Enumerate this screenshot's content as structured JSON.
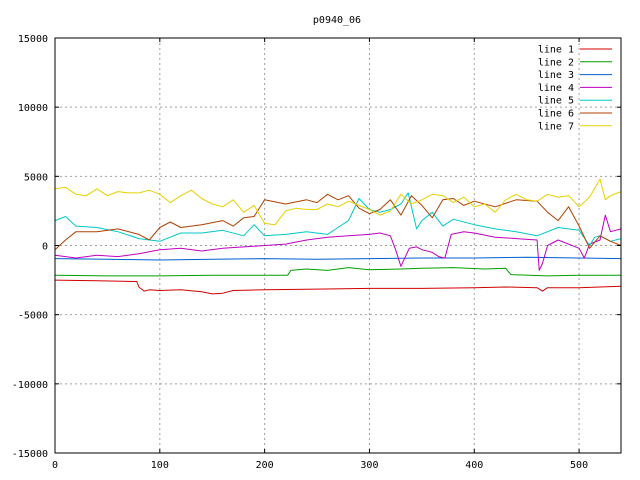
{
  "chart_data": {
    "type": "line",
    "title": "p0940_06",
    "xlabel": "",
    "ylabel": "",
    "xlim": [
      0,
      540
    ],
    "ylim": [
      -15000,
      15000
    ],
    "x_ticks": [
      0,
      100,
      200,
      300,
      400,
      500
    ],
    "y_ticks": [
      -15000,
      -10000,
      -5000,
      0,
      5000,
      10000,
      15000
    ],
    "grid": true,
    "legend_position": "top-right",
    "series": [
      {
        "name": "line 1",
        "color": "#d00000",
        "points": [
          [
            0,
            -2500
          ],
          [
            40,
            -2550
          ],
          [
            78,
            -2600
          ],
          [
            80,
            -3000
          ],
          [
            85,
            -3300
          ],
          [
            90,
            -3200
          ],
          [
            100,
            -3250
          ],
          [
            120,
            -3200
          ],
          [
            140,
            -3350
          ],
          [
            150,
            -3500
          ],
          [
            160,
            -3450
          ],
          [
            170,
            -3250
          ],
          [
            200,
            -3200
          ],
          [
            250,
            -3150
          ],
          [
            300,
            -3100
          ],
          [
            350,
            -3100
          ],
          [
            400,
            -3050
          ],
          [
            430,
            -3000
          ],
          [
            460,
            -3050
          ],
          [
            465,
            -3300
          ],
          [
            470,
            -3050
          ],
          [
            500,
            -3050
          ],
          [
            520,
            -3000
          ],
          [
            540,
            -2950
          ]
        ]
      },
      {
        "name": "line 2",
        "color": "#00a000",
        "points": [
          [
            0,
            -2150
          ],
          [
            50,
            -2200
          ],
          [
            100,
            -2200
          ],
          [
            150,
            -2150
          ],
          [
            200,
            -2150
          ],
          [
            222,
            -2150
          ],
          [
            225,
            -1800
          ],
          [
            240,
            -1700
          ],
          [
            260,
            -1800
          ],
          [
            280,
            -1600
          ],
          [
            300,
            -1750
          ],
          [
            330,
            -1700
          ],
          [
            350,
            -1650
          ],
          [
            380,
            -1600
          ],
          [
            410,
            -1700
          ],
          [
            430,
            -1650
          ],
          [
            435,
            -2100
          ],
          [
            470,
            -2200
          ],
          [
            500,
            -2150
          ],
          [
            540,
            -2150
          ]
        ]
      },
      {
        "name": "line 3",
        "color": "#0060d0",
        "points": [
          [
            0,
            -950
          ],
          [
            50,
            -1000
          ],
          [
            100,
            -1050
          ],
          [
            150,
            -1000
          ],
          [
            200,
            -950
          ],
          [
            250,
            -1000
          ],
          [
            300,
            -950
          ],
          [
            350,
            -900
          ],
          [
            400,
            -900
          ],
          [
            450,
            -850
          ],
          [
            500,
            -900
          ],
          [
            540,
            -950
          ]
        ]
      },
      {
        "name": "line 4",
        "color": "#c000c0",
        "points": [
          [
            0,
            -700
          ],
          [
            20,
            -900
          ],
          [
            40,
            -700
          ],
          [
            60,
            -800
          ],
          [
            80,
            -600
          ],
          [
            100,
            -300
          ],
          [
            120,
            -200
          ],
          [
            140,
            -400
          ],
          [
            160,
            -200
          ],
          [
            180,
            -100
          ],
          [
            200,
            0
          ],
          [
            220,
            100
          ],
          [
            240,
            400
          ],
          [
            260,
            600
          ],
          [
            280,
            700
          ],
          [
            300,
            800
          ],
          [
            310,
            900
          ],
          [
            320,
            700
          ],
          [
            325,
            -300
          ],
          [
            330,
            -1500
          ],
          [
            338,
            -200
          ],
          [
            345,
            -100
          ],
          [
            350,
            -300
          ],
          [
            360,
            -500
          ],
          [
            366,
            -800
          ],
          [
            372,
            -900
          ],
          [
            378,
            800
          ],
          [
            390,
            1000
          ],
          [
            400,
            900
          ],
          [
            420,
            600
          ],
          [
            440,
            500
          ],
          [
            460,
            400
          ],
          [
            462,
            -1800
          ],
          [
            465,
            -1300
          ],
          [
            470,
            0
          ],
          [
            480,
            400
          ],
          [
            500,
            -200
          ],
          [
            505,
            -900
          ],
          [
            510,
            100
          ],
          [
            520,
            400
          ],
          [
            525,
            2200
          ],
          [
            530,
            1000
          ],
          [
            540,
            1200
          ]
        ]
      },
      {
        "name": "line 5",
        "color": "#00c8c8",
        "points": [
          [
            0,
            1800
          ],
          [
            10,
            2100
          ],
          [
            20,
            1400
          ],
          [
            40,
            1300
          ],
          [
            60,
            1000
          ],
          [
            80,
            500
          ],
          [
            100,
            300
          ],
          [
            120,
            900
          ],
          [
            140,
            900
          ],
          [
            160,
            1100
          ],
          [
            180,
            700
          ],
          [
            190,
            1500
          ],
          [
            200,
            700
          ],
          [
            220,
            800
          ],
          [
            240,
            1000
          ],
          [
            260,
            800
          ],
          [
            270,
            1300
          ],
          [
            280,
            1800
          ],
          [
            290,
            3400
          ],
          [
            300,
            2600
          ],
          [
            310,
            2400
          ],
          [
            320,
            2600
          ],
          [
            330,
            3000
          ],
          [
            337,
            3800
          ],
          [
            345,
            1200
          ],
          [
            350,
            1800
          ],
          [
            360,
            2400
          ],
          [
            370,
            1400
          ],
          [
            380,
            1900
          ],
          [
            400,
            1500
          ],
          [
            420,
            1200
          ],
          [
            440,
            1000
          ],
          [
            460,
            700
          ],
          [
            480,
            1300
          ],
          [
            500,
            1100
          ],
          [
            510,
            0
          ],
          [
            515,
            600
          ],
          [
            520,
            700
          ],
          [
            530,
            300
          ],
          [
            540,
            500
          ]
        ]
      },
      {
        "name": "line 6",
        "color": "#b04000",
        "points": [
          [
            0,
            -300
          ],
          [
            10,
            400
          ],
          [
            20,
            1000
          ],
          [
            40,
            1000
          ],
          [
            60,
            1200
          ],
          [
            80,
            800
          ],
          [
            90,
            400
          ],
          [
            100,
            1300
          ],
          [
            110,
            1700
          ],
          [
            120,
            1300
          ],
          [
            140,
            1500
          ],
          [
            160,
            1800
          ],
          [
            170,
            1400
          ],
          [
            180,
            2000
          ],
          [
            190,
            2100
          ],
          [
            200,
            3300
          ],
          [
            220,
            3000
          ],
          [
            240,
            3300
          ],
          [
            250,
            3100
          ],
          [
            260,
            3700
          ],
          [
            270,
            3300
          ],
          [
            280,
            3600
          ],
          [
            290,
            2700
          ],
          [
            300,
            2300
          ],
          [
            310,
            2600
          ],
          [
            320,
            3300
          ],
          [
            330,
            2200
          ],
          [
            340,
            3600
          ],
          [
            350,
            2900
          ],
          [
            360,
            2000
          ],
          [
            370,
            3300
          ],
          [
            380,
            3400
          ],
          [
            390,
            2900
          ],
          [
            400,
            3200
          ],
          [
            420,
            2800
          ],
          [
            440,
            3300
          ],
          [
            460,
            3200
          ],
          [
            470,
            2400
          ],
          [
            480,
            1800
          ],
          [
            490,
            2800
          ],
          [
            500,
            1400
          ],
          [
            510,
            -200
          ],
          [
            520,
            700
          ],
          [
            530,
            300
          ],
          [
            540,
            0
          ]
        ]
      },
      {
        "name": "line 7",
        "color": "#e8d000",
        "points": [
          [
            0,
            4100
          ],
          [
            10,
            4200
          ],
          [
            20,
            3700
          ],
          [
            30,
            3600
          ],
          [
            40,
            4100
          ],
          [
            50,
            3600
          ],
          [
            60,
            3900
          ],
          [
            70,
            3800
          ],
          [
            80,
            3800
          ],
          [
            90,
            4000
          ],
          [
            100,
            3700
          ],
          [
            110,
            3100
          ],
          [
            120,
            3600
          ],
          [
            130,
            4000
          ],
          [
            140,
            3400
          ],
          [
            150,
            3000
          ],
          [
            160,
            2800
          ],
          [
            170,
            3300
          ],
          [
            180,
            2400
          ],
          [
            190,
            2900
          ],
          [
            200,
            1600
          ],
          [
            210,
            1500
          ],
          [
            220,
            2500
          ],
          [
            230,
            2700
          ],
          [
            240,
            2600
          ],
          [
            250,
            2600
          ],
          [
            260,
            3000
          ],
          [
            270,
            2800
          ],
          [
            280,
            3200
          ],
          [
            290,
            2900
          ],
          [
            300,
            2600
          ],
          [
            310,
            2200
          ],
          [
            320,
            2500
          ],
          [
            330,
            3700
          ],
          [
            340,
            3000
          ],
          [
            350,
            3300
          ],
          [
            360,
            3700
          ],
          [
            370,
            3600
          ],
          [
            380,
            3100
          ],
          [
            390,
            3500
          ],
          [
            400,
            2800
          ],
          [
            410,
            3000
          ],
          [
            420,
            2400
          ],
          [
            430,
            3300
          ],
          [
            440,
            3700
          ],
          [
            450,
            3300
          ],
          [
            460,
            3200
          ],
          [
            470,
            3700
          ],
          [
            480,
            3500
          ],
          [
            490,
            3600
          ],
          [
            500,
            2800
          ],
          [
            510,
            3500
          ],
          [
            520,
            4800
          ],
          [
            525,
            3300
          ],
          [
            530,
            3600
          ],
          [
            540,
            3900
          ]
        ]
      }
    ]
  }
}
